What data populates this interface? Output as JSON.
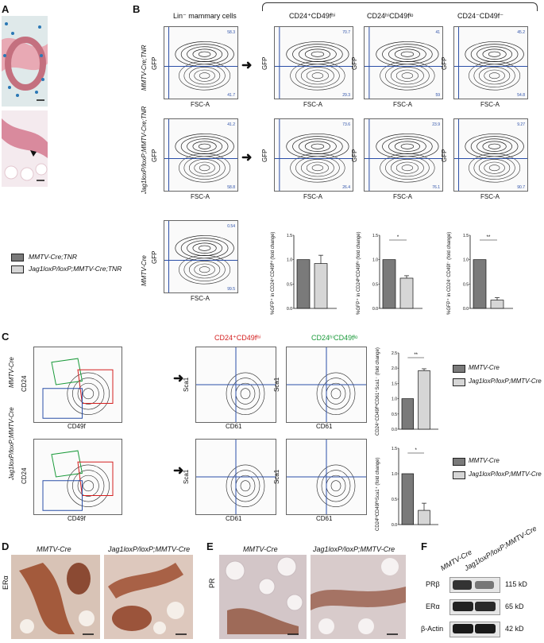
{
  "panels": {
    "a": "A",
    "b": "B",
    "c": "C",
    "d": "D",
    "e": "E",
    "f": "F"
  },
  "b": {
    "col_headers": {
      "lin": "Lin⁻ mammary cells",
      "hi": "CD24⁺CD49fʰⁱ",
      "lo": "CD24ʰⁱCD49fˡᵒ",
      "neg": "CD24⁻CD49f⁻"
    },
    "row_labels": {
      "r1": "MMTV-Cre;TNR",
      "r2": "Jag1loxP/loxP;MMTV-Cre;TNR",
      "r3": "MMTV-Cre"
    },
    "x_axis": "FSC-A",
    "y_axis": "GFP",
    "x_ticks": [
      "0",
      "50K",
      "100K",
      "150K",
      "200K",
      "250K"
    ],
    "y_ticks": [
      "0",
      "10²",
      "10³",
      "10⁴",
      "10⁵"
    ],
    "quad_values": {
      "r1c1": [
        "58.3",
        "41.7"
      ],
      "r1c2": [
        "70.7",
        "29.3"
      ],
      "r1c3": [
        "41",
        "59"
      ],
      "r1c4": [
        "45.2",
        "54.8"
      ],
      "r2c1": [
        "41.2",
        "58.8"
      ],
      "r2c2": [
        "73.6",
        "26.4"
      ],
      "r2c3": [
        "23.9",
        "76.1"
      ],
      "r2c4": [
        "9.27",
        "90.7"
      ],
      "r3c1": [
        "0.54",
        "99.5"
      ]
    }
  },
  "legend_b": [
    {
      "label": "MMTV-Cre;TNR",
      "color": "#7a7a7a"
    },
    {
      "label": "Jag1loxP/loxP;MMTV-Cre;TNR",
      "color": "#d6d6d6"
    }
  ],
  "chart_data": [
    {
      "type": "bar",
      "categories": [
        "MMTV-Cre;TNR",
        "Jag1loxP/loxP;MMTV-Cre;TNR"
      ],
      "values": [
        1.0,
        0.92
      ],
      "errors": [
        0,
        0.17
      ],
      "ylabel": "%GFP⁺ in CD24⁺CD49fʰⁱ (fold change)",
      "ylim": [
        0,
        1.5
      ],
      "yticks": [
        "0.0",
        "0.5",
        "1.0",
        "1.5"
      ],
      "sig": ""
    },
    {
      "type": "bar",
      "categories": [
        "MMTV-Cre;TNR",
        "Jag1loxP/loxP;MMTV-Cre;TNR"
      ],
      "values": [
        1.0,
        0.62
      ],
      "errors": [
        0,
        0.05
      ],
      "ylabel": "%GFP⁺ in CD24ʰⁱCD49fˡᵒ (fold change)",
      "ylim": [
        0,
        1.5
      ],
      "yticks": [
        "0.0",
        "0.5",
        "1.0",
        "1.5"
      ],
      "sig": "*"
    },
    {
      "type": "bar",
      "categories": [
        "MMTV-Cre;TNR",
        "Jag1loxP/loxP;MMTV-Cre;TNR"
      ],
      "values": [
        1.0,
        0.17
      ],
      "errors": [
        0,
        0.05
      ],
      "ylabel": "%GFP⁺ in CD24⁻CD49f⁻ (fold change)",
      "ylim": [
        0,
        1.5
      ],
      "yticks": [
        "0.0",
        "0.5",
        "1.0",
        "1.5"
      ],
      "sig": "**"
    },
    {
      "type": "bar",
      "categories": [
        "MMTV-Cre",
        "Jag1loxP/loxP;MMTV-Cre"
      ],
      "values": [
        1.0,
        1.92
      ],
      "errors": [
        0,
        0.06
      ],
      "ylabel": "CD24⁺CD49fʰⁱCD61⁺Sca1⁻ (fold change)",
      "ylim": [
        0,
        2.5
      ],
      "yticks": [
        "0.0",
        "0.5",
        "1.0",
        "1.5",
        "2.0",
        "2.5"
      ],
      "sig": "**"
    },
    {
      "type": "bar",
      "categories": [
        "MMTV-Cre",
        "Jag1loxP/loxP;MMTV-Cre"
      ],
      "values": [
        1.0,
        0.28
      ],
      "errors": [
        0,
        0.14
      ],
      "ylabel": "CD24ʰⁱCD49fˡᵒSca1⁺ (fold change)",
      "ylim": [
        0,
        1.5
      ],
      "yticks": [
        "0.0",
        "0.5",
        "1.0",
        "1.5"
      ],
      "sig": "*"
    }
  ],
  "c": {
    "row_labels": {
      "r1": "MMTV-Cre",
      "r2": "Jag1loxP/loxP;MMTV-Cre"
    },
    "hdr_hi": "CD24⁺CD49fʰⁱ",
    "hdr_lo": "CD24ʰⁱCD49fˡᵒ",
    "hdr_hi_color": "#d42020",
    "hdr_lo_color": "#1a9a3a",
    "ax_cd24": "CD24",
    "ax_cd49f": "CD49f",
    "ax_sca1": "Sca1",
    "ax_cd61": "CD61",
    "legend": [
      {
        "label": "MMTV-Cre",
        "color": "#7a7a7a"
      },
      {
        "label": "Jag1loxP/loxP;MMTV-Cre",
        "color": "#d6d6d6"
      }
    ]
  },
  "d": {
    "h1": "MMTV-Cre",
    "h2": "Jag1loxP/loxP;MMTV-Cre",
    "side": "ERα"
  },
  "e": {
    "h1": "MMTV-Cre",
    "h2": "Jag1loxP/loxP;MMTV-Cre",
    "side": "PR"
  },
  "f": {
    "lane1": "MMTV-Cre",
    "lane2": "Jag1loxP/loxP;MMTV-Cre",
    "rows": [
      {
        "name": "PRβ",
        "size": "115 kD"
      },
      {
        "name": "ERα",
        "size": "65 kD"
      },
      {
        "name": "β-Actin",
        "size": "42 kD"
      }
    ]
  }
}
